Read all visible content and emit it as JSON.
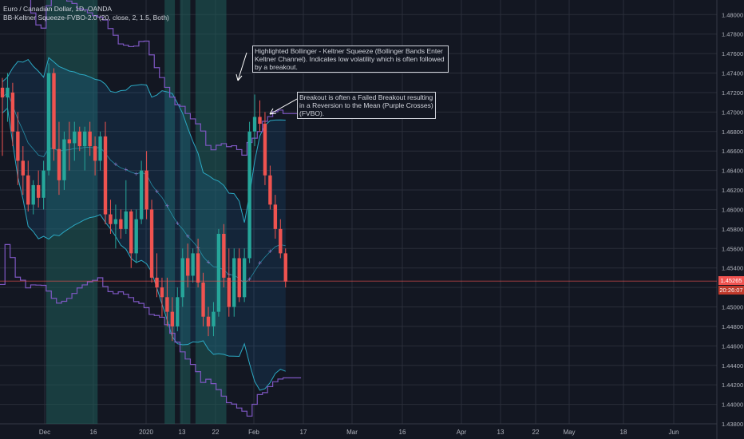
{
  "header": {
    "symbol_line": "Euro / Canadian Dollar, 1D, OANDA",
    "indicator_line": "BB-Keltner Squeeze-FVBO-2.0 (20, close, 2, 1.5, Both)"
  },
  "annotations": [
    {
      "text": "Highlighted Bollinger - Keltner Squeeze (Bollinger Bands Enter Keltner Channel). Indicates low volatility which is often followed by a breakout."
    },
    {
      "text": "Breakout is often a Failed Breakout resulting in a Reversion to the Mean (Purple Crosses) (FVBO)."
    }
  ],
  "price_tags": {
    "last_price": "1.45265",
    "countdown": "20:26:07"
  },
  "colors": {
    "background": "#131722",
    "grid": "#2a2e39",
    "up_candle": "#26a69a",
    "down_candle": "#ef5350",
    "keltner": "#7e57c2",
    "bollinger": "#2ba8c2",
    "squeeze_highlight": "#1f5c59",
    "crosses": "#9575cd",
    "text": "#d1d4dc",
    "axis_text": "#b2b5be"
  },
  "chart_data": {
    "type": "candlestick",
    "y_axis": {
      "ylim": [
        1.438,
        1.4815
      ],
      "ticks": [
        "1.48000",
        "1.47800",
        "1.47600",
        "1.47400",
        "1.47200",
        "1.47000",
        "1.46800",
        "1.46600",
        "1.46400",
        "1.46200",
        "1.46000",
        "1.45800",
        "1.45600",
        "1.45400",
        "1.45200",
        "1.45000",
        "1.44800",
        "1.44600",
        "1.44400",
        "1.44200",
        "1.44000",
        "1.43800"
      ]
    },
    "x_axis": {
      "ticks": [
        "Dec",
        "16",
        "2020",
        "13",
        "22",
        "Feb",
        "17",
        "Mar",
        "16",
        "Apr",
        "13",
        "22",
        "May",
        "18",
        "Jun"
      ]
    },
    "candles": [
      {
        "o": 1.4725,
        "h": 1.4735,
        "l": 1.4655,
        "c": 1.4715
      },
      {
        "o": 1.4715,
        "h": 1.474,
        "l": 1.469,
        "c": 1.4725
      },
      {
        "o": 1.472,
        "h": 1.473,
        "l": 1.4665,
        "c": 1.468
      },
      {
        "o": 1.468,
        "h": 1.47,
        "l": 1.4625,
        "c": 1.465
      },
      {
        "o": 1.465,
        "h": 1.4665,
        "l": 1.4615,
        "c": 1.4635
      },
      {
        "o": 1.4635,
        "h": 1.465,
        "l": 1.4598,
        "c": 1.4605
      },
      {
        "o": 1.4605,
        "h": 1.463,
        "l": 1.4595,
        "c": 1.4625
      },
      {
        "o": 1.4625,
        "h": 1.464,
        "l": 1.4602,
        "c": 1.4612
      },
      {
        "o": 1.4612,
        "h": 1.465,
        "l": 1.46,
        "c": 1.464
      },
      {
        "o": 1.464,
        "h": 1.475,
        "l": 1.4635,
        "c": 1.474
      },
      {
        "o": 1.474,
        "h": 1.4745,
        "l": 1.465,
        "c": 1.4662
      },
      {
        "o": 1.4662,
        "h": 1.469,
        "l": 1.4615,
        "c": 1.463
      },
      {
        "o": 1.463,
        "h": 1.468,
        "l": 1.462,
        "c": 1.4672
      },
      {
        "o": 1.4672,
        "h": 1.469,
        "l": 1.464,
        "c": 1.4668
      },
      {
        "o": 1.4668,
        "h": 1.469,
        "l": 1.465,
        "c": 1.468
      },
      {
        "o": 1.468,
        "h": 1.4685,
        "l": 1.466,
        "c": 1.4665
      },
      {
        "o": 1.4665,
        "h": 1.4685,
        "l": 1.464,
        "c": 1.468
      },
      {
        "o": 1.468,
        "h": 1.469,
        "l": 1.4655,
        "c": 1.4665
      },
      {
        "o": 1.4665,
        "h": 1.4675,
        "l": 1.4635,
        "c": 1.465
      },
      {
        "o": 1.465,
        "h": 1.468,
        "l": 1.464,
        "c": 1.4675
      },
      {
        "o": 1.4675,
        "h": 1.469,
        "l": 1.4585,
        "c": 1.4595
      },
      {
        "o": 1.4595,
        "h": 1.461,
        "l": 1.4575,
        "c": 1.4585
      },
      {
        "o": 1.4585,
        "h": 1.4605,
        "l": 1.456,
        "c": 1.459
      },
      {
        "o": 1.459,
        "h": 1.46,
        "l": 1.457,
        "c": 1.458
      },
      {
        "o": 1.458,
        "h": 1.463,
        "l": 1.4575,
        "c": 1.4598
      },
      {
        "o": 1.4598,
        "h": 1.46,
        "l": 1.454,
        "c": 1.4555
      },
      {
        "o": 1.4555,
        "h": 1.46,
        "l": 1.4545,
        "c": 1.459
      },
      {
        "o": 1.459,
        "h": 1.465,
        "l": 1.4585,
        "c": 1.464
      },
      {
        "o": 1.464,
        "h": 1.466,
        "l": 1.459,
        "c": 1.46
      },
      {
        "o": 1.46,
        "h": 1.461,
        "l": 1.4525,
        "c": 1.453
      },
      {
        "o": 1.453,
        "h": 1.4555,
        "l": 1.451,
        "c": 1.452
      },
      {
        "o": 1.452,
        "h": 1.453,
        "l": 1.449,
        "c": 1.451
      },
      {
        "o": 1.451,
        "h": 1.453,
        "l": 1.448,
        "c": 1.4495
      },
      {
        "o": 1.4495,
        "h": 1.451,
        "l": 1.4465,
        "c": 1.448
      },
      {
        "o": 1.448,
        "h": 1.452,
        "l": 1.4475,
        "c": 1.451
      },
      {
        "o": 1.451,
        "h": 1.456,
        "l": 1.45,
        "c": 1.455
      },
      {
        "o": 1.455,
        "h": 1.4565,
        "l": 1.452,
        "c": 1.4532
      },
      {
        "o": 1.4532,
        "h": 1.456,
        "l": 1.4525,
        "c": 1.4555
      },
      {
        "o": 1.4555,
        "h": 1.457,
        "l": 1.452,
        "c": 1.4525
      },
      {
        "o": 1.4525,
        "h": 1.4535,
        "l": 1.448,
        "c": 1.449
      },
      {
        "o": 1.449,
        "h": 1.45,
        "l": 1.447,
        "c": 1.448
      },
      {
        "o": 1.448,
        "h": 1.4505,
        "l": 1.447,
        "c": 1.4495
      },
      {
        "o": 1.4495,
        "h": 1.458,
        "l": 1.449,
        "c": 1.4575
      },
      {
        "o": 1.4575,
        "h": 1.4585,
        "l": 1.452,
        "c": 1.453
      },
      {
        "o": 1.453,
        "h": 1.456,
        "l": 1.449,
        "c": 1.45
      },
      {
        "o": 1.45,
        "h": 1.456,
        "l": 1.449,
        "c": 1.455
      },
      {
        "o": 1.455,
        "h": 1.456,
        "l": 1.4505,
        "c": 1.451
      },
      {
        "o": 1.451,
        "h": 1.456,
        "l": 1.4505,
        "c": 1.455
      },
      {
        "o": 1.455,
        "h": 1.469,
        "l": 1.4545,
        "c": 1.468
      },
      {
        "o": 1.468,
        "h": 1.4718,
        "l": 1.4665,
        "c": 1.4695
      },
      {
        "o": 1.4695,
        "h": 1.4712,
        "l": 1.468,
        "c": 1.4688
      },
      {
        "o": 1.4688,
        "h": 1.47,
        "l": 1.4625,
        "c": 1.4635
      },
      {
        "o": 1.4635,
        "h": 1.4645,
        "l": 1.46,
        "c": 1.4605
      },
      {
        "o": 1.4605,
        "h": 1.4615,
        "l": 1.457,
        "c": 1.458
      },
      {
        "o": 1.458,
        "h": 1.459,
        "l": 1.455,
        "c": 1.4555
      },
      {
        "o": 1.4555,
        "h": 1.456,
        "l": 1.452,
        "c": 1.4526
      }
    ],
    "squeeze_ranges": [
      [
        9,
        18
      ],
      [
        32,
        33
      ],
      [
        35,
        36
      ],
      [
        38,
        43
      ]
    ],
    "annotation_labels": [
      "squeeze note",
      "FVBO note"
    ]
  }
}
